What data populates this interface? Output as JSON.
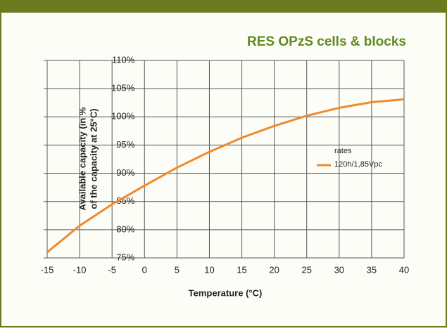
{
  "chart_data": {
    "type": "line",
    "title": "RES OPzS cells & blocks",
    "xlabel": "Temperature (°C)",
    "ylabel": [
      "Available capacity (in %",
      "of the capacity at 25°C)"
    ],
    "legend_title": "rates",
    "x": [
      -15,
      -10,
      -5,
      0,
      5,
      10,
      15,
      20,
      25,
      30,
      35,
      40
    ],
    "series": [
      {
        "name": "120h/1,85Vpc",
        "color": "#f0892a",
        "values": [
          76,
          80.7,
          84.5,
          87.8,
          91,
          93.8,
          96.3,
          98.4,
          100.2,
          101.6,
          102.6,
          103.1
        ]
      }
    ],
    "xlim": [
      -15,
      40
    ],
    "xticks": [
      -15,
      -10,
      -5,
      0,
      5,
      10,
      15,
      20,
      25,
      30,
      35,
      40
    ],
    "ylim": [
      75,
      110
    ],
    "yticks": [
      {
        "value": 75,
        "label": "75%"
      },
      {
        "value": 80,
        "label": "80%"
      },
      {
        "value": 85,
        "label": "85%"
      },
      {
        "value": 90,
        "label": "90%"
      },
      {
        "value": 95,
        "label": "95%"
      },
      {
        "value": 100,
        "label": "100%"
      },
      {
        "value": 105,
        "label": "105%"
      },
      {
        "value": 110,
        "label": "110%"
      }
    ],
    "grid": true
  }
}
